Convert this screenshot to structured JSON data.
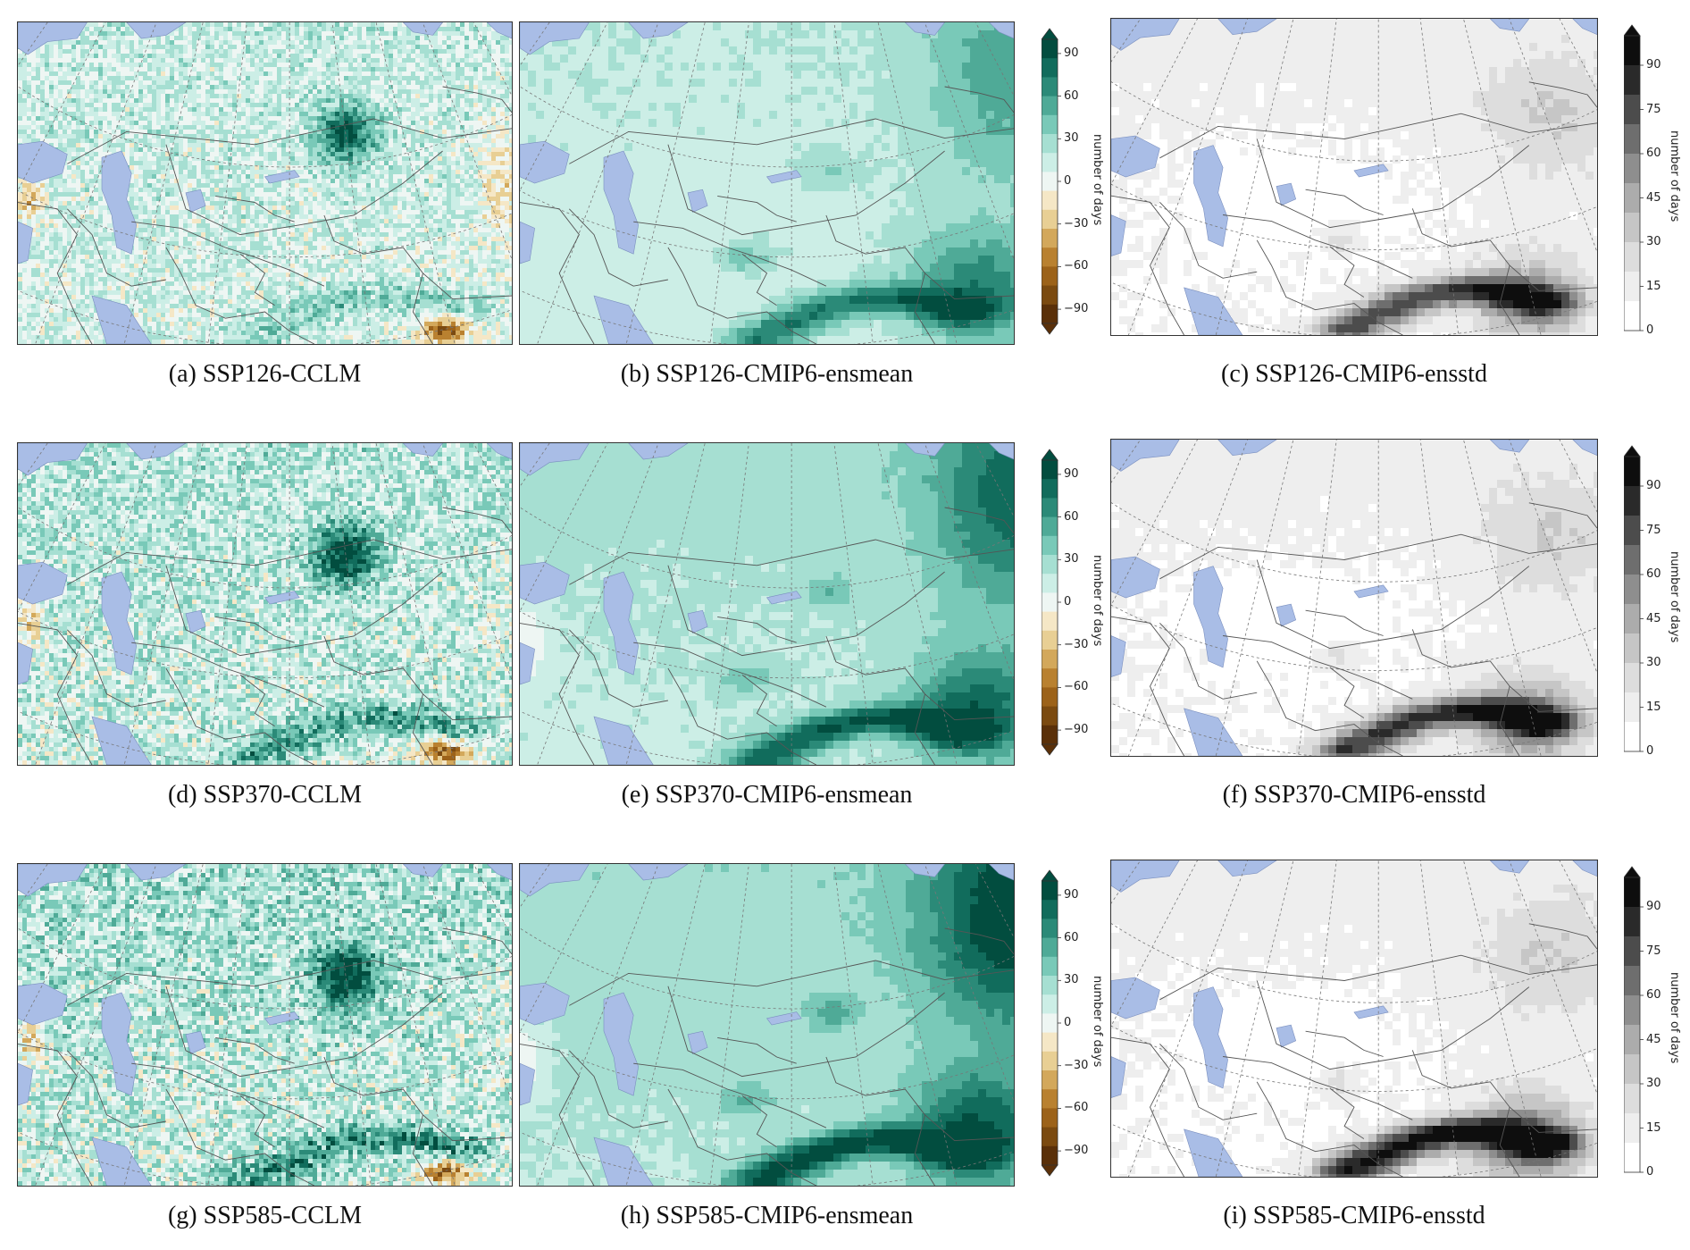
{
  "colors": {
    "brbg": [
      "#5a3009",
      "#7b4a10",
      "#9c6219",
      "#b98130",
      "#d3a85b",
      "#e8cf94",
      "#f5e7c6",
      "#eef6f3",
      "#cceee6",
      "#a6dfd2",
      "#79c9b8",
      "#4faa97",
      "#2b8a78",
      "#116c5c",
      "#024d3f"
    ],
    "grey": [
      "#ffffff",
      "#eeeeee",
      "#dddddd",
      "#c6c6c6",
      "#acacac",
      "#8e8e8e",
      "#6e6e6e",
      "#4c4c4c",
      "#2a2a2a",
      "#0e0e0e"
    ],
    "water": "#a9bde6",
    "border": "#555555",
    "grid": "#777777"
  },
  "panels": [
    {
      "id": "a",
      "caption": "(a) SSP126-CCLM",
      "kind": "cclm",
      "scenario": 1
    },
    {
      "id": "b",
      "caption": "(b) SSP126-CMIP6-ensmean",
      "kind": "ensmean",
      "scenario": 1
    },
    {
      "id": "c",
      "caption": "(c) SSP126-CMIP6-ensstd",
      "kind": "ensstd",
      "scenario": 1
    },
    {
      "id": "d",
      "caption": "(d) SSP370-CCLM",
      "kind": "cclm",
      "scenario": 2
    },
    {
      "id": "e",
      "caption": "(e) SSP370-CMIP6-ensmean",
      "kind": "ensmean",
      "scenario": 2
    },
    {
      "id": "f",
      "caption": "(f) SSP370-CMIP6-ensstd",
      "kind": "ensstd",
      "scenario": 2
    },
    {
      "id": "g",
      "caption": "(g) SSP585-CCLM",
      "kind": "cclm",
      "scenario": 3
    },
    {
      "id": "h",
      "caption": "(h) SSP585-CMIP6-ensmean",
      "kind": "ensmean",
      "scenario": 3
    },
    {
      "id": "i",
      "caption": "(i) SSP585-CMIP6-ensstd",
      "kind": "ensstd",
      "scenario": 3
    }
  ],
  "diverging_colorbar": {
    "label": "number of days",
    "ticks": [
      "90",
      "60",
      "30",
      "0",
      "−30",
      "−60",
      "−90"
    ],
    "min": -100,
    "max": 100,
    "extend": "both"
  },
  "sequential_colorbar": {
    "label": "number of days",
    "ticks": [
      "90",
      "75",
      "60",
      "45",
      "30",
      "15",
      "0"
    ],
    "min": 0,
    "max": 100,
    "extend": "max"
  }
}
